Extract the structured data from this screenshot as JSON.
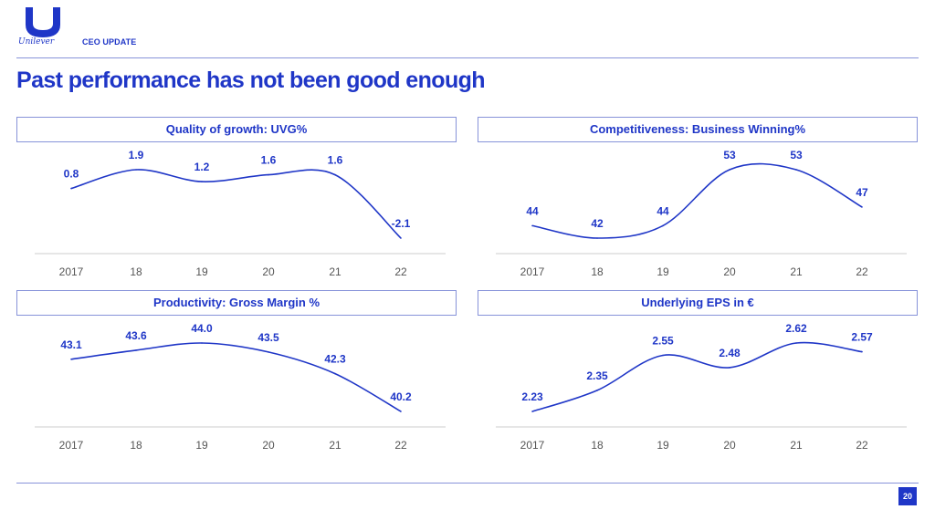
{
  "header": {
    "brand": "Unilever",
    "section": "CEO UPDATE",
    "title": "Past performance has not been good enough"
  },
  "colors": {
    "accent": "#1f36c7",
    "rule": "#8793d9",
    "axis": "#555555"
  },
  "chart_data": [
    {
      "type": "line",
      "title": "Quality of growth: UVG%",
      "categories": [
        "2017",
        "18",
        "19",
        "20",
        "21",
        "22"
      ],
      "values": [
        0.8,
        1.9,
        1.2,
        1.6,
        1.6,
        -2.1
      ],
      "value_labels": [
        "0.8",
        "1.9",
        "1.2",
        "1.6",
        "1.6",
        "-2.1"
      ],
      "xlabel": "",
      "ylabel": "",
      "grid": false
    },
    {
      "type": "line",
      "title": "Competitiveness: Business Winning%",
      "categories": [
        "2017",
        "18",
        "19",
        "20",
        "21",
        "22"
      ],
      "values": [
        44,
        42,
        44,
        53,
        53,
        47
      ],
      "value_labels": [
        "44",
        "42",
        "44",
        "53",
        "53",
        "47"
      ],
      "xlabel": "",
      "ylabel": "",
      "grid": false
    },
    {
      "type": "line",
      "title": "Productivity: Gross Margin %",
      "categories": [
        "2017",
        "18",
        "19",
        "20",
        "21",
        "22"
      ],
      "values": [
        43.1,
        43.6,
        44.0,
        43.5,
        42.3,
        40.2
      ],
      "value_labels": [
        "43.1",
        "43.6",
        "44.0",
        "43.5",
        "42.3",
        "40.2"
      ],
      "xlabel": "",
      "ylabel": "",
      "grid": false
    },
    {
      "type": "line",
      "title": "Underlying EPS in €",
      "categories": [
        "2017",
        "18",
        "19",
        "20",
        "21",
        "22"
      ],
      "values": [
        2.23,
        2.35,
        2.55,
        2.48,
        2.62,
        2.57
      ],
      "value_labels": [
        "2.23",
        "2.35",
        "2.55",
        "2.48",
        "2.62",
        "2.57"
      ],
      "xlabel": "",
      "ylabel": "",
      "grid": false
    }
  ],
  "footer": {
    "page_number": "20"
  }
}
